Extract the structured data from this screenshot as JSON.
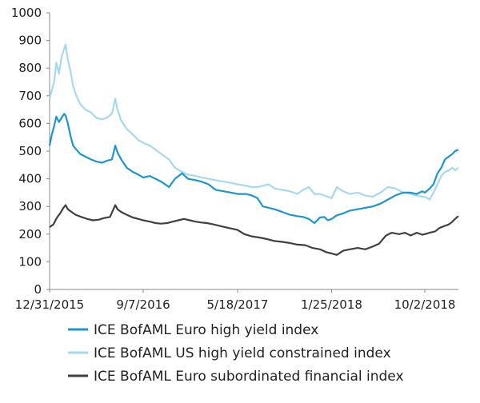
{
  "chart_data": {
    "type": "line",
    "title": "",
    "xlabel": "",
    "ylabel": "",
    "ylim": [
      0,
      1000
    ],
    "yticks": [
      0,
      100,
      200,
      300,
      400,
      500,
      600,
      700,
      800,
      900,
      1000
    ],
    "xlim": [
      "2015-12-31",
      "2018-12-31"
    ],
    "xticks": [
      "12/31/2015",
      "9/7/2016",
      "5/18/2017",
      "1/25/2018",
      "10/2/2018"
    ],
    "grid": false,
    "legend_position": "bottom",
    "series": [
      {
        "name": "ICE BofAML Euro high yield index",
        "color": "#1f95c9",
        "points": [
          [
            "2015-12-31",
            520
          ],
          [
            "2016-01-06",
            560
          ],
          [
            "2016-01-12",
            590
          ],
          [
            "2016-01-18",
            625
          ],
          [
            "2016-01-25",
            605
          ],
          [
            "2016-02-01",
            620
          ],
          [
            "2016-02-08",
            635
          ],
          [
            "2016-02-12",
            628
          ],
          [
            "2016-02-18",
            600
          ],
          [
            "2016-02-25",
            555
          ],
          [
            "2016-03-03",
            520
          ],
          [
            "2016-03-12",
            505
          ],
          [
            "2016-03-22",
            490
          ],
          [
            "2016-04-05",
            480
          ],
          [
            "2016-04-20",
            470
          ],
          [
            "2016-05-05",
            462
          ],
          [
            "2016-05-20",
            458
          ],
          [
            "2016-06-01",
            465
          ],
          [
            "2016-06-15",
            470
          ],
          [
            "2016-06-24",
            520
          ],
          [
            "2016-06-30",
            495
          ],
          [
            "2016-07-10",
            470
          ],
          [
            "2016-07-25",
            440
          ],
          [
            "2016-08-10",
            425
          ],
          [
            "2016-08-25",
            415
          ],
          [
            "2016-09-07",
            405
          ],
          [
            "2016-09-25",
            410
          ],
          [
            "2016-10-10",
            400
          ],
          [
            "2016-10-25",
            390
          ],
          [
            "2016-11-05",
            380
          ],
          [
            "2016-11-15",
            370
          ],
          [
            "2016-12-01",
            400
          ],
          [
            "2016-12-20",
            420
          ],
          [
            "2017-01-05",
            400
          ],
          [
            "2017-01-25",
            395
          ],
          [
            "2017-02-10",
            390
          ],
          [
            "2017-03-01",
            380
          ],
          [
            "2017-03-20",
            360
          ],
          [
            "2017-04-10",
            355
          ],
          [
            "2017-05-01",
            350
          ],
          [
            "2017-05-18",
            345
          ],
          [
            "2017-06-10",
            345
          ],
          [
            "2017-06-25",
            340
          ],
          [
            "2017-07-10",
            330
          ],
          [
            "2017-07-25",
            300
          ],
          [
            "2017-08-10",
            295
          ],
          [
            "2017-08-25",
            290
          ],
          [
            "2017-09-15",
            280
          ],
          [
            "2017-10-05",
            270
          ],
          [
            "2017-10-25",
            265
          ],
          [
            "2017-11-10",
            262
          ],
          [
            "2017-11-25",
            255
          ],
          [
            "2017-12-10",
            240
          ],
          [
            "2017-12-25",
            260
          ],
          [
            "2018-01-05",
            262
          ],
          [
            "2018-01-15",
            250
          ],
          [
            "2018-01-25",
            255
          ],
          [
            "2018-02-08",
            268
          ],
          [
            "2018-02-25",
            275
          ],
          [
            "2018-03-15",
            285
          ],
          [
            "2018-04-05",
            290
          ],
          [
            "2018-04-25",
            295
          ],
          [
            "2018-05-15",
            300
          ],
          [
            "2018-06-05",
            310
          ],
          [
            "2018-06-25",
            325
          ],
          [
            "2018-07-15",
            340
          ],
          [
            "2018-08-05",
            350
          ],
          [
            "2018-08-25",
            350
          ],
          [
            "2018-09-10",
            345
          ],
          [
            "2018-09-25",
            355
          ],
          [
            "2018-10-02",
            350
          ],
          [
            "2018-10-15",
            365
          ],
          [
            "2018-10-25",
            380
          ],
          [
            "2018-11-05",
            420
          ],
          [
            "2018-11-15",
            440
          ],
          [
            "2018-11-25",
            470
          ],
          [
            "2018-12-05",
            480
          ],
          [
            "2018-12-15",
            490
          ],
          [
            "2018-12-22",
            500
          ],
          [
            "2018-12-31",
            505
          ]
        ]
      },
      {
        "name": "ICE BofAML US high yield constrained index",
        "color": "#a8d8ee",
        "points": [
          [
            "2015-12-31",
            690
          ],
          [
            "2016-01-06",
            720
          ],
          [
            "2016-01-12",
            750
          ],
          [
            "2016-01-18",
            820
          ],
          [
            "2016-01-25",
            780
          ],
          [
            "2016-02-01",
            840
          ],
          [
            "2016-02-08",
            870
          ],
          [
            "2016-02-12",
            885
          ],
          [
            "2016-02-18",
            830
          ],
          [
            "2016-02-25",
            790
          ],
          [
            "2016-03-03",
            735
          ],
          [
            "2016-03-12",
            700
          ],
          [
            "2016-03-22",
            670
          ],
          [
            "2016-04-05",
            650
          ],
          [
            "2016-04-20",
            640
          ],
          [
            "2016-05-05",
            620
          ],
          [
            "2016-05-20",
            615
          ],
          [
            "2016-06-01",
            620
          ],
          [
            "2016-06-15",
            635
          ],
          [
            "2016-06-24",
            690
          ],
          [
            "2016-06-30",
            650
          ],
          [
            "2016-07-10",
            610
          ],
          [
            "2016-07-25",
            580
          ],
          [
            "2016-08-10",
            560
          ],
          [
            "2016-08-25",
            540
          ],
          [
            "2016-09-07",
            530
          ],
          [
            "2016-09-25",
            520
          ],
          [
            "2016-10-10",
            505
          ],
          [
            "2016-10-25",
            490
          ],
          [
            "2016-11-05",
            480
          ],
          [
            "2016-11-15",
            470
          ],
          [
            "2016-12-01",
            440
          ],
          [
            "2016-12-20",
            425
          ],
          [
            "2017-01-05",
            415
          ],
          [
            "2017-01-25",
            410
          ],
          [
            "2017-02-10",
            405
          ],
          [
            "2017-03-01",
            400
          ],
          [
            "2017-03-20",
            395
          ],
          [
            "2017-04-10",
            390
          ],
          [
            "2017-05-01",
            385
          ],
          [
            "2017-05-18",
            380
          ],
          [
            "2017-06-10",
            375
          ],
          [
            "2017-06-25",
            370
          ],
          [
            "2017-07-10",
            370
          ],
          [
            "2017-07-25",
            375
          ],
          [
            "2017-08-10",
            380
          ],
          [
            "2017-08-25",
            365
          ],
          [
            "2017-09-15",
            360
          ],
          [
            "2017-10-05",
            355
          ],
          [
            "2017-10-25",
            345
          ],
          [
            "2017-11-10",
            360
          ],
          [
            "2017-11-25",
            370
          ],
          [
            "2017-12-10",
            345
          ],
          [
            "2017-12-25",
            345
          ],
          [
            "2018-01-05",
            340
          ],
          [
            "2018-01-15",
            335
          ],
          [
            "2018-01-25",
            330
          ],
          [
            "2018-02-08",
            370
          ],
          [
            "2018-02-25",
            355
          ],
          [
            "2018-03-15",
            345
          ],
          [
            "2018-04-05",
            350
          ],
          [
            "2018-04-25",
            340
          ],
          [
            "2018-05-15",
            335
          ],
          [
            "2018-06-05",
            350
          ],
          [
            "2018-06-25",
            370
          ],
          [
            "2018-07-15",
            365
          ],
          [
            "2018-08-05",
            350
          ],
          [
            "2018-08-25",
            345
          ],
          [
            "2018-09-10",
            340
          ],
          [
            "2018-09-25",
            335
          ],
          [
            "2018-10-02",
            335
          ],
          [
            "2018-10-15",
            325
          ],
          [
            "2018-10-25",
            350
          ],
          [
            "2018-11-05",
            380
          ],
          [
            "2018-11-15",
            410
          ],
          [
            "2018-11-25",
            425
          ],
          [
            "2018-12-05",
            430
          ],
          [
            "2018-12-15",
            440
          ],
          [
            "2018-12-22",
            430
          ],
          [
            "2018-12-31",
            440
          ]
        ]
      },
      {
        "name": "ICE BofAML Euro subordinated financial index",
        "color": "#404040",
        "points": [
          [
            "2015-12-31",
            225
          ],
          [
            "2016-01-10",
            235
          ],
          [
            "2016-01-20",
            260
          ],
          [
            "2016-01-28",
            275
          ],
          [
            "2016-02-06",
            295
          ],
          [
            "2016-02-12",
            305
          ],
          [
            "2016-02-18",
            290
          ],
          [
            "2016-02-28",
            280
          ],
          [
            "2016-03-10",
            270
          ],
          [
            "2016-03-25",
            262
          ],
          [
            "2016-04-10",
            255
          ],
          [
            "2016-04-25",
            250
          ],
          [
            "2016-05-10",
            252
          ],
          [
            "2016-05-25",
            258
          ],
          [
            "2016-06-10",
            262
          ],
          [
            "2016-06-24",
            305
          ],
          [
            "2016-06-30",
            290
          ],
          [
            "2016-07-10",
            280
          ],
          [
            "2016-07-25",
            270
          ],
          [
            "2016-08-10",
            260
          ],
          [
            "2016-08-25",
            255
          ],
          [
            "2016-09-07",
            250
          ],
          [
            "2016-09-25",
            245
          ],
          [
            "2016-10-10",
            240
          ],
          [
            "2016-10-25",
            238
          ],
          [
            "2016-11-10",
            240
          ],
          [
            "2016-11-25",
            245
          ],
          [
            "2016-12-10",
            250
          ],
          [
            "2016-12-25",
            255
          ],
          [
            "2017-01-10",
            250
          ],
          [
            "2017-01-25",
            245
          ],
          [
            "2017-02-10",
            242
          ],
          [
            "2017-02-25",
            240
          ],
          [
            "2017-03-15",
            235
          ],
          [
            "2017-04-05",
            228
          ],
          [
            "2017-04-25",
            222
          ],
          [
            "2017-05-18",
            215
          ],
          [
            "2017-06-05",
            200
          ],
          [
            "2017-06-25",
            192
          ],
          [
            "2017-07-15",
            188
          ],
          [
            "2017-08-05",
            182
          ],
          [
            "2017-08-25",
            175
          ],
          [
            "2017-09-15",
            172
          ],
          [
            "2017-10-05",
            168
          ],
          [
            "2017-10-25",
            162
          ],
          [
            "2017-11-15",
            160
          ],
          [
            "2017-12-05",
            150
          ],
          [
            "2017-12-25",
            145
          ],
          [
            "2018-01-10",
            135
          ],
          [
            "2018-01-25",
            130
          ],
          [
            "2018-02-08",
            125
          ],
          [
            "2018-02-25",
            140
          ],
          [
            "2018-03-15",
            145
          ],
          [
            "2018-04-05",
            150
          ],
          [
            "2018-04-25",
            145
          ],
          [
            "2018-05-15",
            155
          ],
          [
            "2018-06-01",
            165
          ],
          [
            "2018-06-20",
            195
          ],
          [
            "2018-07-05",
            205
          ],
          [
            "2018-07-25",
            200
          ],
          [
            "2018-08-10",
            205
          ],
          [
            "2018-08-25",
            195
          ],
          [
            "2018-09-10",
            205
          ],
          [
            "2018-09-25",
            198
          ],
          [
            "2018-10-02",
            200
          ],
          [
            "2018-10-15",
            205
          ],
          [
            "2018-10-30",
            210
          ],
          [
            "2018-11-10",
            222
          ],
          [
            "2018-11-25",
            230
          ],
          [
            "2018-12-05",
            235
          ],
          [
            "2018-12-15",
            245
          ],
          [
            "2018-12-22",
            255
          ],
          [
            "2018-12-31",
            265
          ]
        ]
      }
    ]
  }
}
